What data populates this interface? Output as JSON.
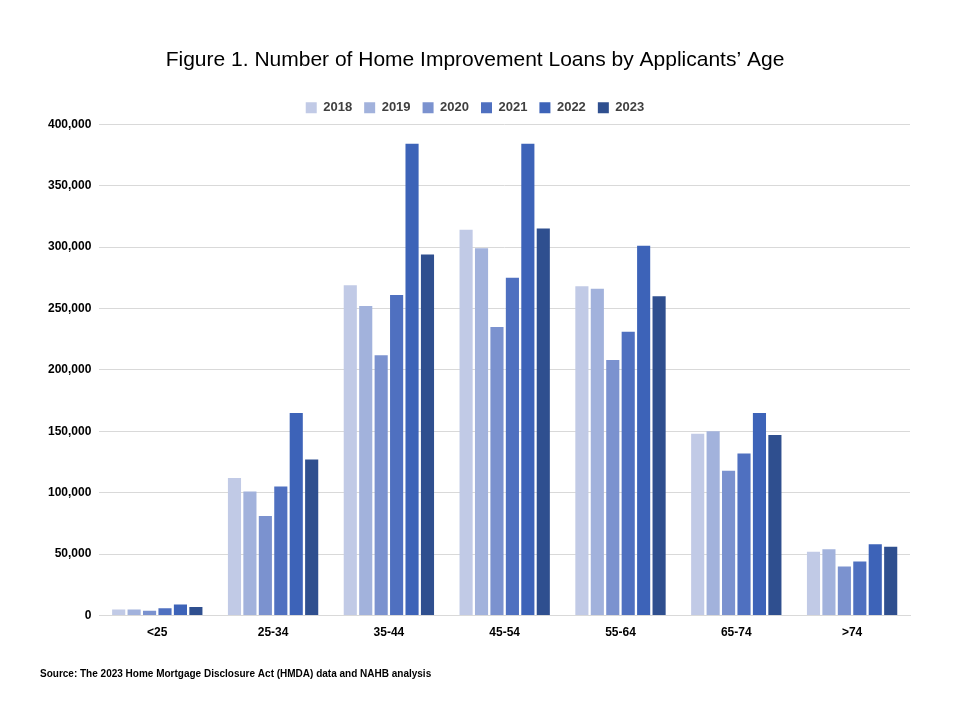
{
  "chart_data": {
    "type": "bar",
    "title": "Figure 1. Number of Home Improvement Loans by Applicants’ Age",
    "source": "Source: The 2023 Home Mortgage Disclosure Act (HMDA) data and NAHB analysis",
    "categories": [
      "<25",
      "25-34",
      "35-44",
      "45-54",
      "55-64",
      "65-74",
      ">74"
    ],
    "series": [
      {
        "name": "2018",
        "color": "#c1cae6",
        "values": [
          5000,
          112000,
          269000,
          314000,
          268000,
          148000,
          52000
        ]
      },
      {
        "name": "2019",
        "color": "#a2b2dc",
        "values": [
          5000,
          101000,
          252000,
          299000,
          266000,
          150000,
          54000
        ]
      },
      {
        "name": "2020",
        "color": "#7b92cf",
        "values": [
          4000,
          81000,
          212000,
          235000,
          208000,
          118000,
          40000
        ]
      },
      {
        "name": "2021",
        "color": "#4f70c0",
        "values": [
          6000,
          105000,
          261000,
          275000,
          231000,
          132000,
          44000
        ]
      },
      {
        "name": "2022",
        "color": "#3d63b8",
        "values": [
          9000,
          165000,
          384000,
          384000,
          301000,
          165000,
          58000
        ]
      },
      {
        "name": "2023",
        "color": "#2f4f8f",
        "values": [
          7000,
          127000,
          294000,
          315000,
          260000,
          147000,
          56000
        ]
      }
    ],
    "ylim": [
      0,
      400000
    ],
    "yticks": [
      0,
      {
        "value": 50000,
        "label": "50,000"
      },
      {
        "value": 100000,
        "label": "100,000"
      },
      {
        "value": 150000,
        "label": "150,000"
      },
      {
        "value": 200000,
        "label": "200,000"
      },
      {
        "value": 250000,
        "label": "250,000"
      },
      {
        "value": 300000,
        "label": "300,000"
      },
      {
        "value": 350000,
        "label": "350,000"
      },
      {
        "value": 400000,
        "label": "400,000"
      }
    ],
    "legend": "top",
    "grid": true
  }
}
